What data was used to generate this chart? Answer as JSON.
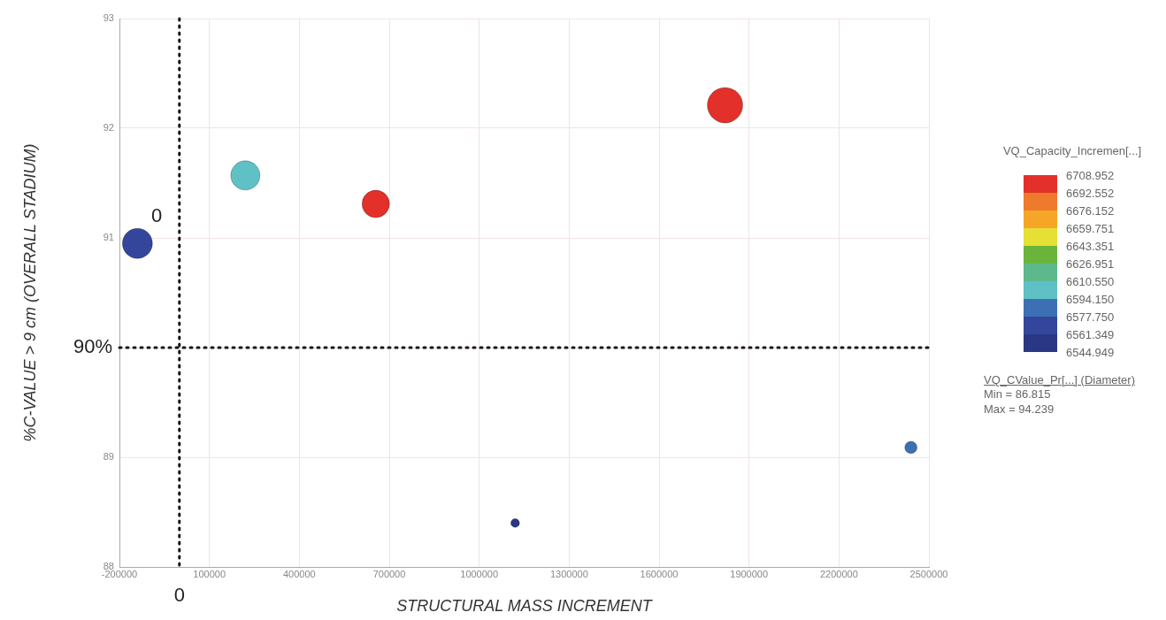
{
  "chart_data": {
    "type": "bubble",
    "xlabel": "STRUCTURAL MASS INCREMENT",
    "ylabel": "%C-VALUE > 9 cm (OVERALL STADIUM)",
    "clabel": "VQ_Capacity_Incremen[...]",
    "legend_title": "VQ_CValue_Pr[...] (Diameter)",
    "x": [
      -140000,
      220000,
      655000,
      1820000,
      1120000,
      2440000
    ],
    "values": [
      90.95,
      91.57,
      91.31,
      92.21,
      88.4,
      89.09
    ],
    "sizes": [
      0.72,
      0.68,
      0.6,
      1,
      0.06,
      0.12
    ],
    "colors": [
      "#34469b",
      "#5fc0c6",
      "#e3302a",
      "#e3302a",
      "#2a3784",
      "#3c70b4"
    ],
    "clim": [
      6544.949,
      6708.952
    ],
    "cticks": [
      {
        "value": 6544.949,
        "label": "6544.949"
      },
      {
        "value": 6561.349,
        "label": "6561.349"
      },
      {
        "value": 6577.75,
        "label": "6577.750"
      },
      {
        "value": 6594.15,
        "label": "6594.150"
      },
      {
        "value": 6610.55,
        "label": "6610.550"
      },
      {
        "value": 6626.951,
        "label": "6626.951"
      },
      {
        "value": 6643.351,
        "label": "6643.351"
      },
      {
        "value": 6659.751,
        "label": "6659.751"
      },
      {
        "value": 6676.152,
        "label": "6676.152"
      },
      {
        "value": 6692.552,
        "label": "6692.552"
      },
      {
        "value": 6708.952,
        "label": "6708.952"
      }
    ],
    "xlim": [
      -200000,
      2500000
    ],
    "xticks": [
      -200000,
      100000,
      400000,
      700000,
      1000000,
      1300000,
      1600000,
      1900000,
      2200000,
      2500000
    ],
    "ylim": [
      88,
      93
    ],
    "yticks": [
      88,
      89,
      {
        "value": 90,
        "label": null
      },
      91,
      92,
      93
    ],
    "grid": true,
    "ref_lines": [
      {
        "axis": "x",
        "value": 0,
        "label": "0",
        "color": "#111111",
        "line_style": "dotted"
      },
      {
        "axis": "y",
        "value": 90,
        "label": "90%",
        "color": "#111111",
        "line_style": "dotted"
      }
    ],
    "annotations": [
      "0",
      "Min = 86.815",
      "Max = 94.239"
    ]
  }
}
